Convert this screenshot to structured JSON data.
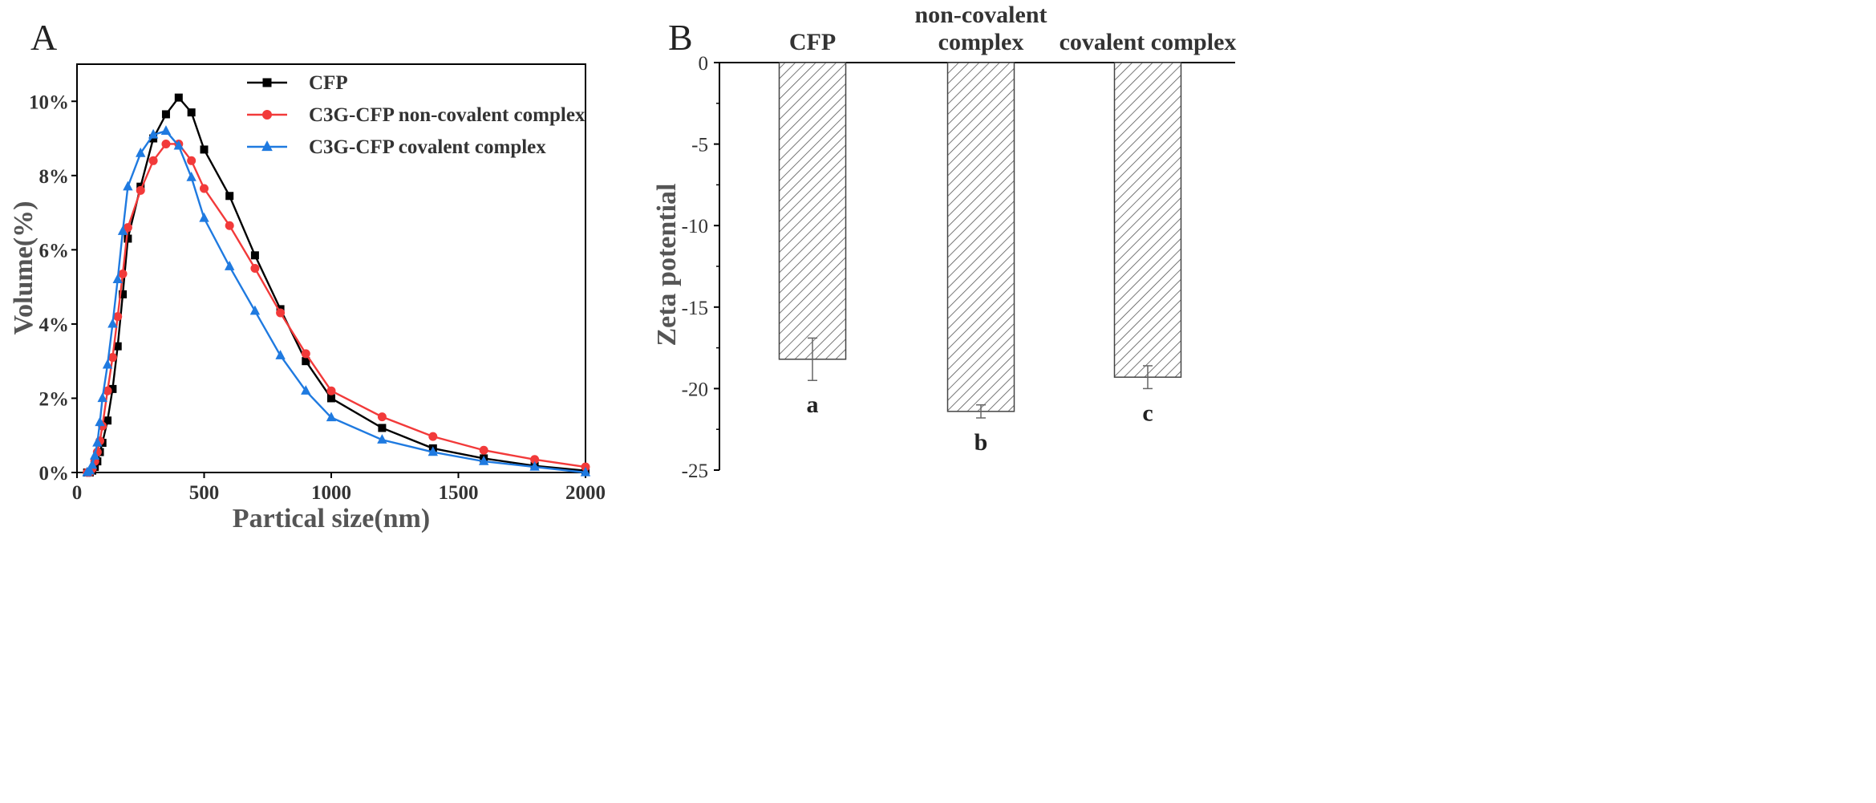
{
  "chart_data": [
    {
      "panel": "A",
      "type": "line",
      "xlabel": "Partical size(nm)",
      "ylabel": "Volume(%)",
      "xlim": [
        0,
        2000
      ],
      "ylim": [
        0,
        11
      ],
      "x_ticks": [
        "0",
        "500",
        "1000",
        "1500",
        "2000"
      ],
      "y_ticks": [
        "0%",
        "2%",
        "4%",
        "6%",
        "8%",
        "10%"
      ],
      "legend_position": "top-right",
      "series": [
        {
          "name": "CFP",
          "color": "#000000",
          "marker": "square",
          "points": [
            [
              40,
              0.0
            ],
            [
              50,
              0.0
            ],
            [
              60,
              0.05
            ],
            [
              70,
              0.15
            ],
            [
              80,
              0.3
            ],
            [
              90,
              0.55
            ],
            [
              100,
              0.8
            ],
            [
              120,
              1.4
            ],
            [
              140,
              2.25
            ],
            [
              160,
              3.4
            ],
            [
              180,
              4.8
            ],
            [
              200,
              6.3
            ],
            [
              250,
              7.7
            ],
            [
              300,
              9.0
            ],
            [
              350,
              9.65
            ],
            [
              400,
              10.1
            ],
            [
              450,
              9.7
            ],
            [
              500,
              8.7
            ],
            [
              600,
              7.45
            ],
            [
              700,
              5.85
            ],
            [
              800,
              4.4
            ],
            [
              900,
              3.0
            ],
            [
              1000,
              2.0
            ],
            [
              1200,
              1.2
            ],
            [
              1400,
              0.65
            ],
            [
              1600,
              0.38
            ],
            [
              1800,
              0.18
            ],
            [
              2000,
              0.05
            ]
          ]
        },
        {
          "name": "C3G-CFP non-covalent complex",
          "color": "#f23a3a",
          "marker": "circle",
          "points": [
            [
              40,
              0.0
            ],
            [
              50,
              0.0
            ],
            [
              60,
              0.1
            ],
            [
              70,
              0.3
            ],
            [
              80,
              0.55
            ],
            [
              90,
              0.85
            ],
            [
              100,
              1.25
            ],
            [
              120,
              2.2
            ],
            [
              140,
              3.1
            ],
            [
              160,
              4.2
            ],
            [
              180,
              5.35
            ],
            [
              200,
              6.6
            ],
            [
              250,
              7.6
            ],
            [
              300,
              8.4
            ],
            [
              350,
              8.85
            ],
            [
              400,
              8.85
            ],
            [
              450,
              8.4
            ],
            [
              500,
              7.65
            ],
            [
              600,
              6.65
            ],
            [
              700,
              5.5
            ],
            [
              800,
              4.3
            ],
            [
              900,
              3.2
            ],
            [
              1000,
              2.2
            ],
            [
              1200,
              1.5
            ],
            [
              1400,
              0.97
            ],
            [
              1600,
              0.6
            ],
            [
              1800,
              0.35
            ],
            [
              2000,
              0.15
            ]
          ]
        },
        {
          "name": "C3G-CFP covalent complex",
          "color": "#1f7ae0",
          "marker": "triangle",
          "points": [
            [
              40,
              0.0
            ],
            [
              50,
              0.05
            ],
            [
              60,
              0.2
            ],
            [
              70,
              0.45
            ],
            [
              80,
              0.8
            ],
            [
              90,
              1.35
            ],
            [
              100,
              2.0
            ],
            [
              120,
              2.9
            ],
            [
              140,
              4.0
            ],
            [
              160,
              5.2
            ],
            [
              180,
              6.5
            ],
            [
              200,
              7.7
            ],
            [
              250,
              8.6
            ],
            [
              300,
              9.1
            ],
            [
              350,
              9.2
            ],
            [
              400,
              8.8
            ],
            [
              450,
              7.95
            ],
            [
              500,
              6.85
            ],
            [
              600,
              5.55
            ],
            [
              700,
              4.35
            ],
            [
              800,
              3.15
            ],
            [
              900,
              2.2
            ],
            [
              1000,
              1.48
            ],
            [
              1200,
              0.88
            ],
            [
              1400,
              0.55
            ],
            [
              1600,
              0.3
            ],
            [
              1800,
              0.15
            ],
            [
              2000,
              0.0
            ]
          ]
        }
      ]
    },
    {
      "panel": "B",
      "type": "bar",
      "ylabel": "Zeta potential",
      "ylim": [
        -25,
        0
      ],
      "y_ticks": [
        "0",
        "-5",
        "-10",
        "-15",
        "-20",
        "-25"
      ],
      "categories": [
        "CFP",
        "non-covalent\ncomplex",
        "covalent complex"
      ],
      "category_lines": [
        [
          "CFP"
        ],
        [
          "non-covalent",
          "complex"
        ],
        [
          "covalent complex"
        ]
      ],
      "values": [
        -18.2,
        -21.4,
        -19.3
      ],
      "errors": [
        1.3,
        0.4,
        0.7
      ],
      "significance": [
        "a",
        "b",
        "c"
      ],
      "bar_fill": "hatched",
      "bar_color": "#555555"
    }
  ]
}
